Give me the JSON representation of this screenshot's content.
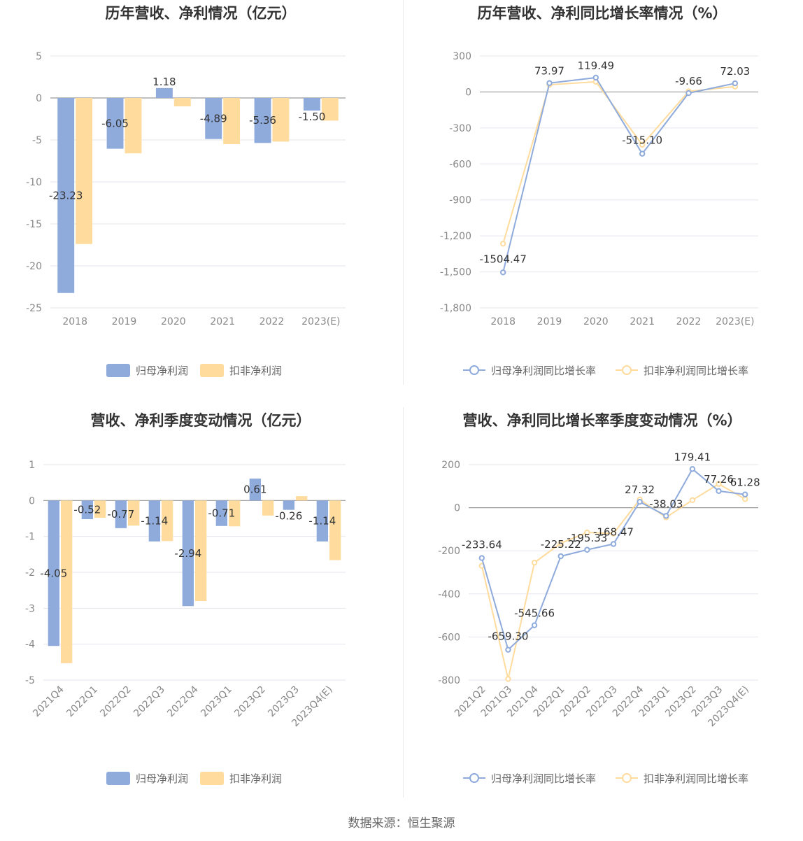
{
  "colors": {
    "series1": "#8fabdc",
    "series2": "#ffdc9e",
    "title": "#333333",
    "axis": "#888888",
    "grid": "#e6e6ee",
    "label": "#333333",
    "legend": "#666666"
  },
  "source": "数据来源：恒生聚源",
  "chart_data": [
    {
      "type": "bar",
      "title": "历年营收、净利情况（亿元）",
      "categories": [
        "2018",
        "2019",
        "2020",
        "2021",
        "2022",
        "2023(E)"
      ],
      "ylim": [
        -25,
        5
      ],
      "yticks": [
        5,
        0,
        -5,
        -10,
        -15,
        -20,
        -25
      ],
      "grid": true,
      "legend": "bottom",
      "series": [
        {
          "name": "归母净利润",
          "values": [
            -23.23,
            -6.05,
            1.18,
            -4.89,
            -5.36,
            -1.5
          ],
          "labels": [
            "-23.23",
            "-6.05",
            "1.18",
            "-4.89",
            "-5.36",
            "-1.50"
          ]
        },
        {
          "name": "扣非净利润",
          "values": [
            -17.4,
            -6.6,
            -1.0,
            -5.5,
            -5.2,
            -2.7
          ]
        }
      ]
    },
    {
      "type": "line",
      "title": "历年营收、净利同比增长率情况（%）",
      "categories": [
        "2018",
        "2019",
        "2020",
        "2021",
        "2022",
        "2023(E)"
      ],
      "ylim": [
        -1800,
        300
      ],
      "yticks": [
        300,
        0,
        -300,
        -600,
        -900,
        -1200,
        -1500,
        -1800
      ],
      "ytick_labels": [
        "300",
        "0",
        "-300",
        "-600",
        "-900",
        "-1,200",
        "-1,500",
        "-1,800"
      ],
      "grid": true,
      "legend": "bottom",
      "series": [
        {
          "name": "归母净利润同比增长率",
          "values": [
            -1504.47,
            73.97,
            119.49,
            -515.1,
            -9.66,
            72.03
          ],
          "labels": [
            "-1504.47",
            "73.97",
            "119.49",
            "-515.10",
            "-9.66",
            "72.03"
          ]
        },
        {
          "name": "扣非净利润同比增长率",
          "values": [
            -1265,
            60,
            85,
            -440,
            5,
            45
          ]
        }
      ]
    },
    {
      "type": "bar",
      "title": "营收、净利季度变动情况（亿元）",
      "categories": [
        "2021Q4",
        "2022Q1",
        "2022Q2",
        "2022Q3",
        "2022Q4",
        "2023Q1",
        "2023Q2",
        "2023Q3",
        "2023Q4(E)"
      ],
      "ylim": [
        -5,
        1
      ],
      "yticks": [
        1,
        0,
        -1,
        -2,
        -3,
        -4,
        -5
      ],
      "grid": true,
      "legend": "bottom",
      "series": [
        {
          "name": "归母净利润",
          "values": [
            -4.05,
            -0.52,
            -0.77,
            -1.14,
            -2.94,
            -0.71,
            0.61,
            -0.26,
            -1.14
          ],
          "labels": [
            "-4.05",
            "-0.52",
            "-0.77",
            "-1.14",
            "-2.94",
            "-0.71",
            "0.61",
            "-0.26",
            "-1.14"
          ]
        },
        {
          "name": "扣非净利润",
          "values": [
            -4.53,
            -0.48,
            -0.7,
            -1.13,
            -2.8,
            -0.72,
            -0.42,
            0.12,
            -1.66
          ]
        }
      ]
    },
    {
      "type": "line",
      "title": "营收、净利同比增长率季度变动情况（%）",
      "categories": [
        "2021Q2",
        "2021Q3",
        "2021Q4",
        "2022Q1",
        "2022Q2",
        "2022Q3",
        "2022Q4",
        "2023Q1",
        "2023Q2",
        "2023Q3",
        "2023Q4(E)"
      ],
      "ylim": [
        -800,
        200
      ],
      "yticks": [
        200,
        0,
        -200,
        -400,
        -600,
        -800
      ],
      "grid": true,
      "legend": "bottom",
      "series": [
        {
          "name": "归母净利润同比增长率",
          "values": [
            -233.64,
            -659.3,
            -545.66,
            -225.22,
            -195.33,
            -168.47,
            27.32,
            -38.03,
            179.41,
            77.26,
            61.28
          ],
          "labels": [
            "-233.64",
            "-659.30",
            "-545.66",
            "-225.22",
            "-195.33",
            "-168.47",
            "27.32",
            "-38.03",
            "179.41",
            "77.26",
            "61.28"
          ]
        },
        {
          "name": "扣非净利润同比增长率",
          "values": [
            -270,
            -795,
            -255,
            -165,
            -115,
            -120,
            38,
            -45,
            35,
            110,
            40
          ]
        }
      ]
    }
  ]
}
